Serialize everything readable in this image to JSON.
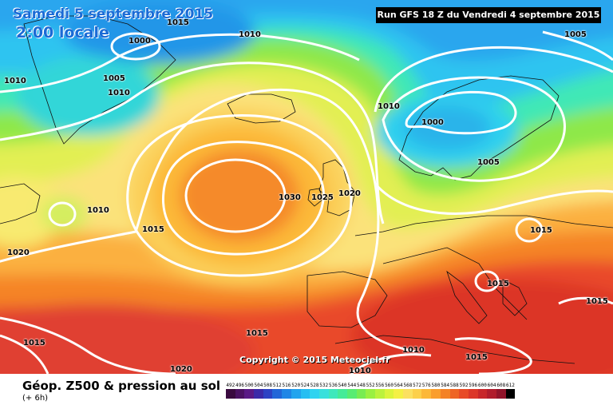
{
  "header": {
    "date_title": "Samedi 5 septembre 2015",
    "time_title": "2:00 locale",
    "run_info": "Run GFS 18 Z du Vendredi 4 septembre 2015"
  },
  "copyright": "Copyright © 2015 Meteociel.fr",
  "footer": {
    "caption": "Géop. Z500 & pression au sol",
    "subcaption": "(+ 6h)"
  },
  "isobar_labels": [
    "1015",
    "1010",
    "1005",
    "1000",
    "1010",
    "1005",
    "1010",
    "1010",
    "1000",
    "1005",
    "1010",
    "1020",
    "1015",
    "1030",
    "1025",
    "1020",
    "1015",
    "1015",
    "1015",
    "1015",
    "1010",
    "1015",
    "1020",
    "1010",
    "1015"
  ],
  "scale": {
    "labels": [
      "492",
      "496",
      "500",
      "504",
      "508",
      "512",
      "516",
      "520",
      "524",
      "528",
      "532",
      "536",
      "540",
      "544",
      "548",
      "552",
      "556",
      "560",
      "564",
      "568",
      "572",
      "576",
      "580",
      "584",
      "588",
      "592",
      "596",
      "600",
      "604",
      "608",
      "612"
    ],
    "colors": [
      "#3a0a3f",
      "#4b1263",
      "#5a1a86",
      "#3b2aa8",
      "#2d42c4",
      "#2266d8",
      "#1f86e6",
      "#22a4ee",
      "#26bef2",
      "#2fd3f0",
      "#38e0dc",
      "#3ee8bc",
      "#45eb98",
      "#58ec72",
      "#78ec52",
      "#9af041",
      "#bcf23c",
      "#dcf43c",
      "#f4f045",
      "#fbe060",
      "#fcd04a",
      "#fcb838",
      "#fa9e2c",
      "#f48226",
      "#ee6424",
      "#e84a26",
      "#dc3628",
      "#c8262a",
      "#b01c2c",
      "#90142a",
      "#000000"
    ]
  },
  "icons": {
    "map": "weather-map-icon"
  }
}
